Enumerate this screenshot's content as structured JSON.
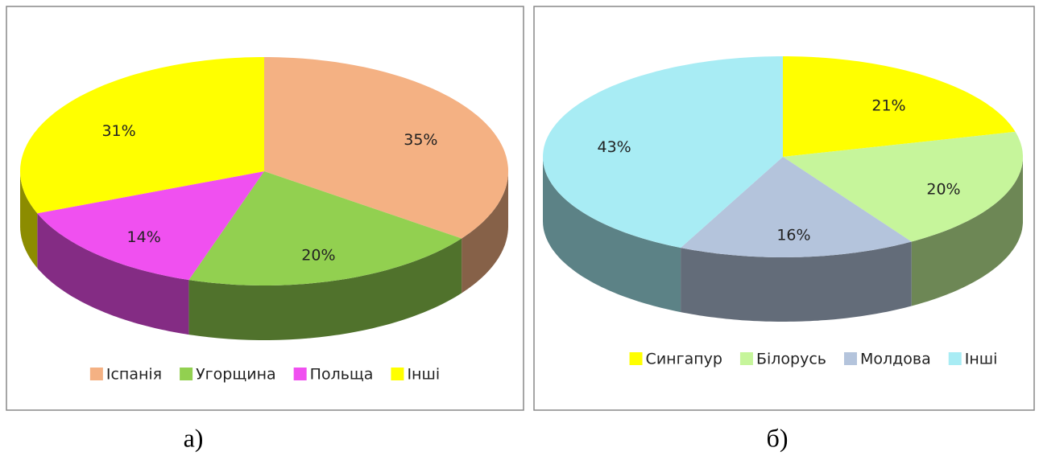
{
  "chart_data": [
    {
      "type": "pie",
      "caption": "а)",
      "categories": [
        "Іспанія",
        "Угорщина",
        "Польща",
        "Інші"
      ],
      "values": [
        35,
        20,
        14,
        31
      ],
      "value_labels": [
        "35%",
        "20%",
        "14%",
        "31%"
      ],
      "colors": [
        "#f4b183",
        "#92d050",
        "#f050f0",
        "#ffff00"
      ],
      "legend": "bottom"
    },
    {
      "type": "pie",
      "caption": "б)",
      "categories": [
        "Сингапур",
        "Білорусь",
        "Молдова",
        "Інші"
      ],
      "values": [
        21,
        20,
        16,
        43
      ],
      "value_labels": [
        "21%",
        "20%",
        "16%",
        "43%"
      ],
      "colors": [
        "#ffff00",
        "#c6f59b",
        "#b4c4dc",
        "#a8ecf4"
      ],
      "legend": "bottom"
    }
  ]
}
